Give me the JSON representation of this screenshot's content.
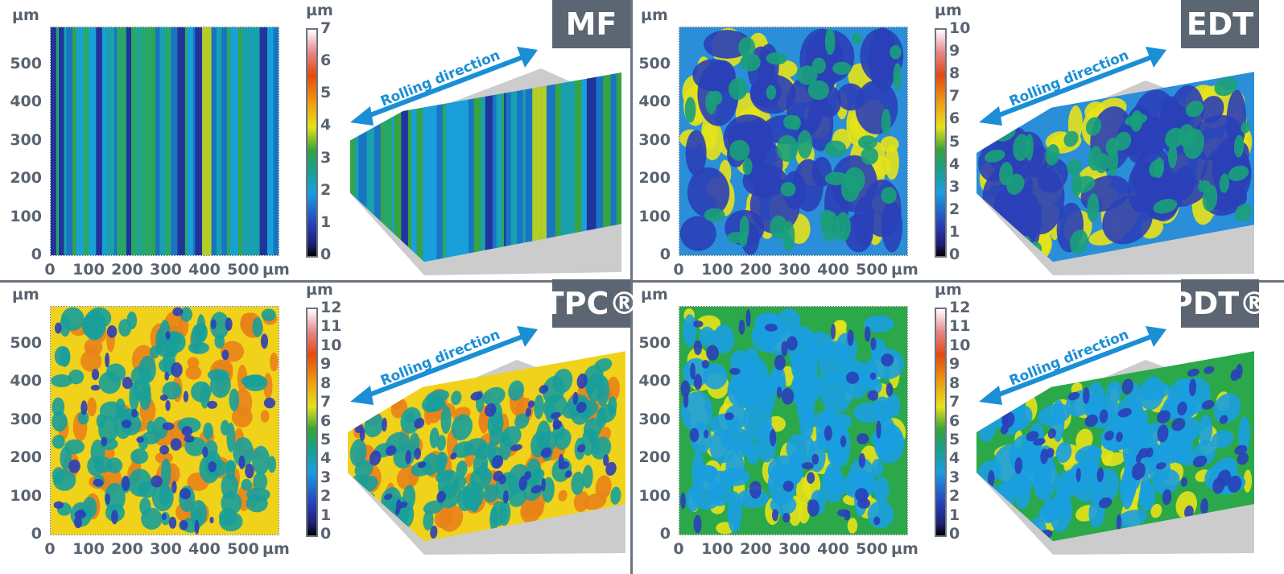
{
  "unit": "µm",
  "rolling_label": "Rolling direction",
  "axis_ticks": [
    "0",
    "100",
    "200",
    "300",
    "400",
    "500"
  ],
  "colors": {
    "divider": "#6b7580",
    "label_box": "#5c6672",
    "arrow": "#1a8fd6"
  },
  "panels": [
    {
      "label": "MF",
      "colorbar_max": 7,
      "colorbar_ticks": [
        "0",
        "1",
        "2",
        "3",
        "4",
        "5",
        "6",
        "7"
      ],
      "pattern": "stripes"
    },
    {
      "label": "EDT",
      "colorbar_max": 10,
      "colorbar_ticks": [
        "0",
        "1",
        "2",
        "3",
        "4",
        "5",
        "6",
        "7",
        "8",
        "9",
        "10"
      ],
      "pattern": "edt"
    },
    {
      "label": "TPC®",
      "colorbar_max": 12,
      "colorbar_ticks": [
        "0",
        "1",
        "2",
        "3",
        "4",
        "5",
        "6",
        "7",
        "8",
        "9",
        "10",
        "11",
        "12"
      ],
      "pattern": "tpc"
    },
    {
      "label": "PDT®",
      "colorbar_max": 12,
      "colorbar_ticks": [
        "0",
        "1",
        "2",
        "3",
        "4",
        "5",
        "6",
        "7",
        "8",
        "9",
        "10",
        "11",
        "12"
      ],
      "pattern": "pdt"
    }
  ]
}
